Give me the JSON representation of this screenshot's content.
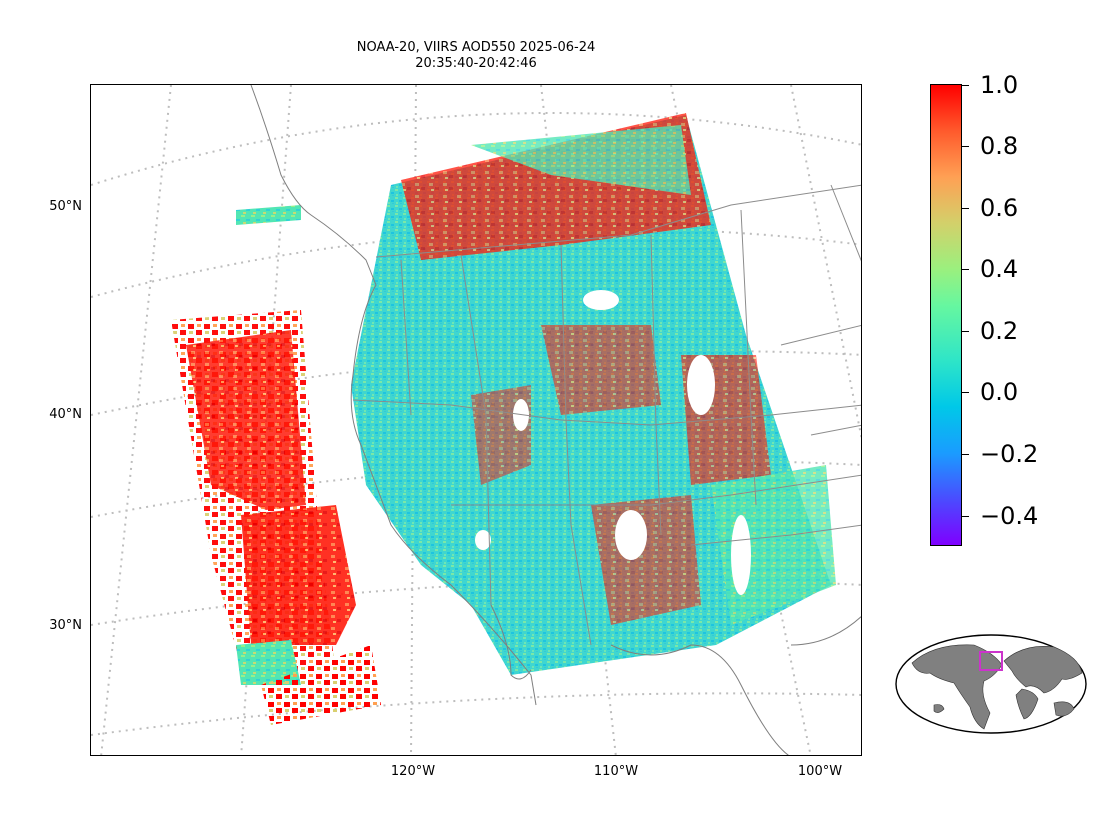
{
  "title": {
    "line1": "NOAA-20, VIIRS AOD550 2025-06-24",
    "line2": "20:35:40-20:42:46"
  },
  "map": {
    "projection": "lambert-conformal",
    "lat_labels": [
      "50°N",
      "40°N",
      "30°N"
    ],
    "lon_labels": [
      "120°W",
      "110°W",
      "100°W"
    ],
    "gridlines": "dotted-gray",
    "coastline_color": "#808080"
  },
  "colorbar": {
    "colormap": "rainbow",
    "vmin": -0.5,
    "vmax": 1.0,
    "tick_labels": [
      "1.0",
      "0.8",
      "0.6",
      "0.4",
      "0.2",
      "0.0",
      "−0.2",
      "−0.4"
    ],
    "tick_values": [
      1.0,
      0.8,
      0.6,
      0.4,
      0.2,
      0.0,
      -0.2,
      -0.4
    ],
    "color_low": "#7f00ff",
    "color_high": "#ff0000"
  },
  "inset": {
    "type": "world-locator-globe",
    "highlight_color": "#cc33cc"
  }
}
